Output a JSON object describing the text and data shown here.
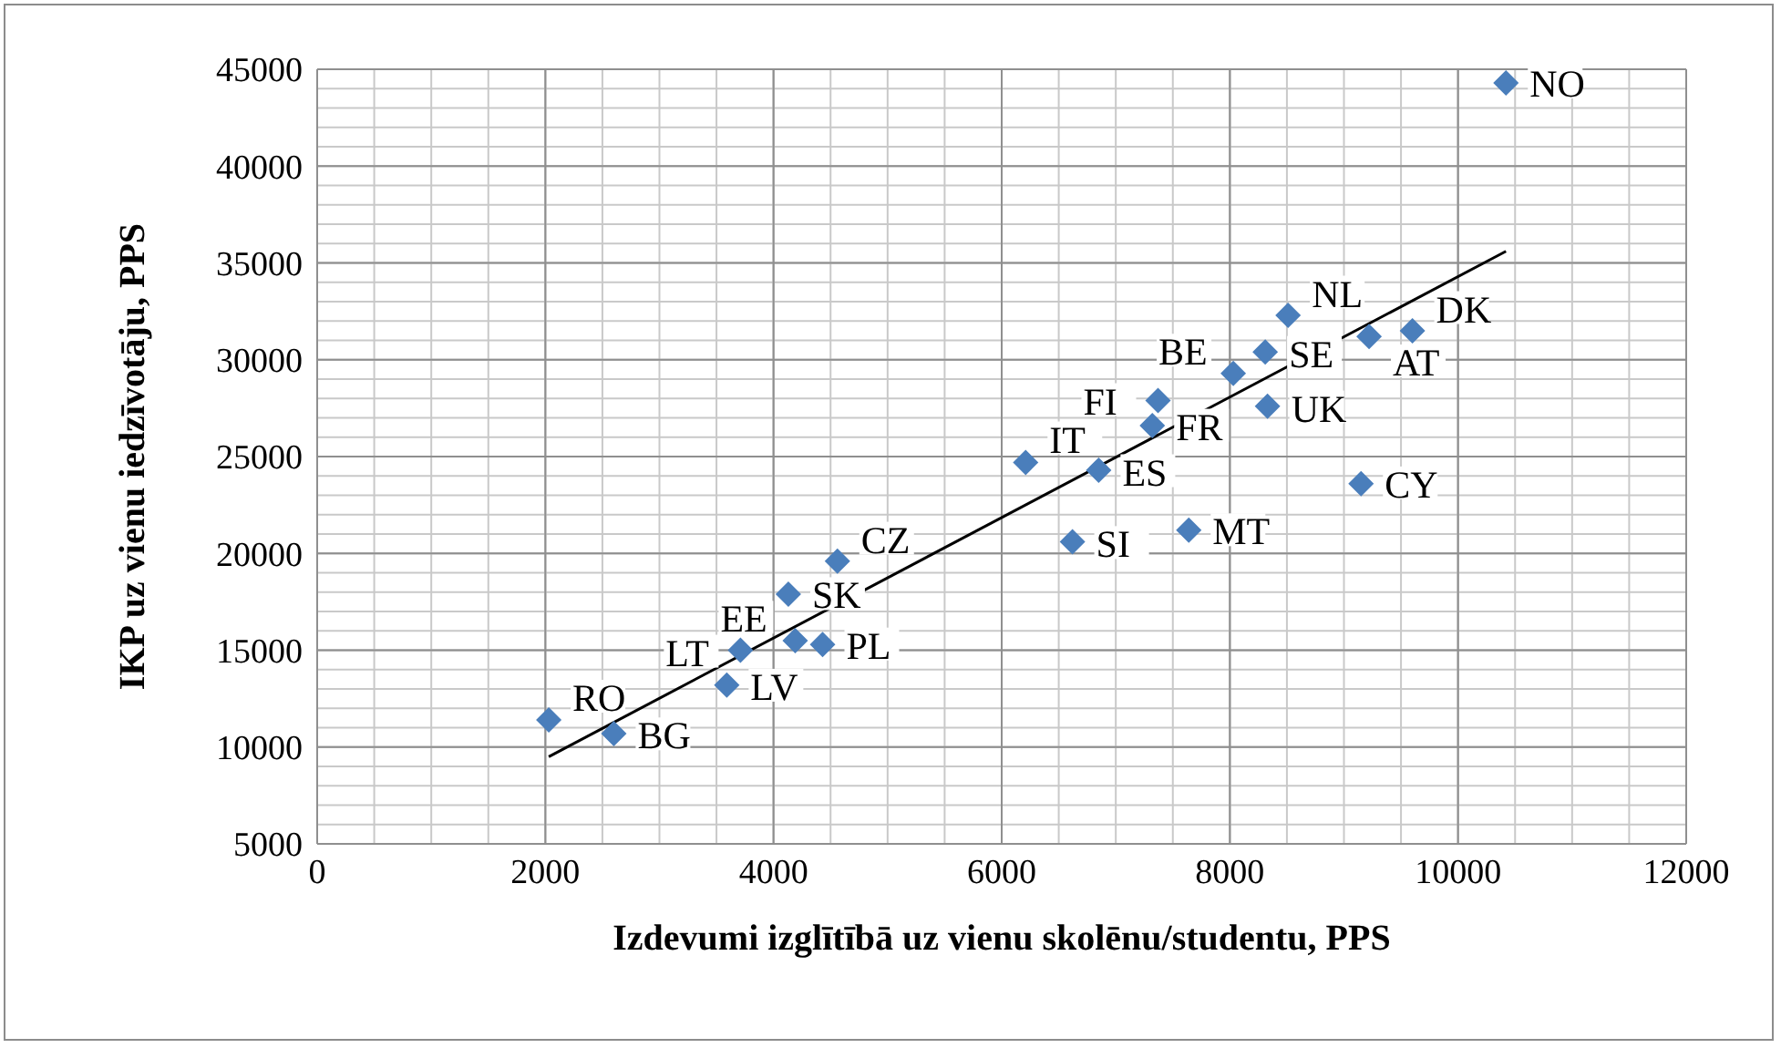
{
  "chart_data": {
    "type": "scatter",
    "xlabel": "Izdevumi izglītībā uz vienu skolēnu/studentu, PPS",
    "ylabel": "IKP uz vienu iedzīvotāju, PPS",
    "xlim": [
      0,
      12000
    ],
    "xticks": [
      0,
      2000,
      4000,
      6000,
      8000,
      10000,
      12000
    ],
    "ylim": [
      5000,
      45000
    ],
    "yticks": [
      5000,
      10000,
      15000,
      20000,
      25000,
      30000,
      35000,
      40000,
      45000
    ],
    "grid": true,
    "marker": "diamond",
    "series": [
      {
        "type": "scatter",
        "color": "#4a7ebb",
        "x": [
          2030,
          2600,
          3590,
          3710,
          4130,
          4560,
          4190,
          4430,
          6210,
          6850,
          6620,
          7640,
          7320,
          7370,
          8030,
          8310,
          8510,
          8330,
          9220,
          9600,
          9150,
          10420
        ],
        "values": [
          11400,
          10700,
          13200,
          15000,
          17900,
          19600,
          15500,
          15300,
          24700,
          24300,
          20600,
          21200,
          26600,
          27900,
          29300,
          30400,
          32300,
          27600,
          31200,
          31500,
          23600,
          44300
        ]
      },
      {
        "type": "line",
        "color": "#000000",
        "marker": "none",
        "line_style": "solid",
        "x": [
          2030,
          10420
        ],
        "values": [
          9500,
          35600
        ]
      }
    ],
    "annotations": [
      {
        "text": "RO",
        "x": 2030,
        "y": 11400
      },
      {
        "text": "BG",
        "x": 2600,
        "y": 10680
      },
      {
        "text": "LV",
        "x": 3590,
        "y": 13190
      },
      {
        "text": "LT",
        "x": 3710,
        "y": 14950
      },
      {
        "text": "SK",
        "x": 4130,
        "y": 17920
      },
      {
        "text": "CZ",
        "x": 4560,
        "y": 19560
      },
      {
        "text": "EE",
        "x": 4190,
        "y": 15480
      },
      {
        "text": "PL",
        "x": 4430,
        "y": 15320
      },
      {
        "text": "IT",
        "x": 6210,
        "y": 24740
      },
      {
        "text": "ES",
        "x": 6850,
        "y": 24270
      },
      {
        "text": "SI",
        "x": 6620,
        "y": 20560
      },
      {
        "text": "MT",
        "x": 7640,
        "y": 21220
      },
      {
        "text": "FR",
        "x": 7320,
        "y": 26620
      },
      {
        "text": "FI",
        "x": 7370,
        "y": 27940
      },
      {
        "text": "BE",
        "x": 8030,
        "y": 29270
      },
      {
        "text": "SE",
        "x": 8310,
        "y": 30380
      },
      {
        "text": "NL",
        "x": 8510,
        "y": 32270
      },
      {
        "text": "UK",
        "x": 8330,
        "y": 27560
      },
      {
        "text": "AT",
        "x": 9220,
        "y": 31160
      },
      {
        "text": "DK",
        "x": 9600,
        "y": 31470
      },
      {
        "text": "CY",
        "x": 9150,
        "y": 23640
      },
      {
        "text": "NO",
        "x": 10420,
        "y": 44340
      }
    ]
  }
}
